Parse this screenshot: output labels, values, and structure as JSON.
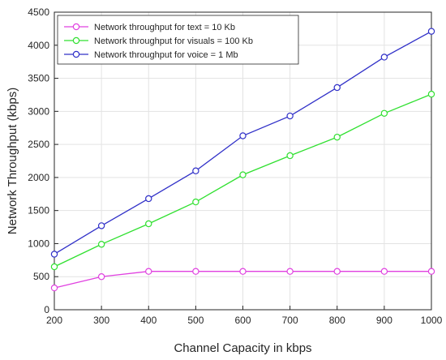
{
  "chart_data": {
    "type": "line",
    "xlabel": "Channel Capacity in kbps",
    "ylabel": "Network Throughput (kbps)",
    "x": [
      200,
      300,
      400,
      500,
      600,
      700,
      800,
      900,
      1000
    ],
    "xlim": [
      200,
      1000
    ],
    "ylim": [
      0,
      4500
    ],
    "xticks": [
      200,
      300,
      400,
      500,
      600,
      700,
      800,
      900,
      1000
    ],
    "yticks": [
      0,
      500,
      1000,
      1500,
      2000,
      2500,
      3000,
      3500,
      4000,
      4500
    ],
    "grid": true,
    "legend_position": "top-left",
    "marker": "open-circle",
    "series": [
      {
        "name": "Network throughput for text = 10 Kb",
        "color": "#e040e0",
        "values": [
          330,
          500,
          580,
          580,
          580,
          580,
          580,
          580,
          580
        ]
      },
      {
        "name": "Network throughput for visuals = 100 Kb",
        "color": "#30e030",
        "values": [
          650,
          990,
          1300,
          1630,
          2040,
          2330,
          2610,
          2970,
          3260
        ]
      },
      {
        "name": "Network throughput for voice = 1 Mb",
        "color": "#3030c8",
        "values": [
          840,
          1270,
          1680,
          2100,
          2630,
          2930,
          3360,
          3820,
          4210
        ]
      }
    ]
  }
}
